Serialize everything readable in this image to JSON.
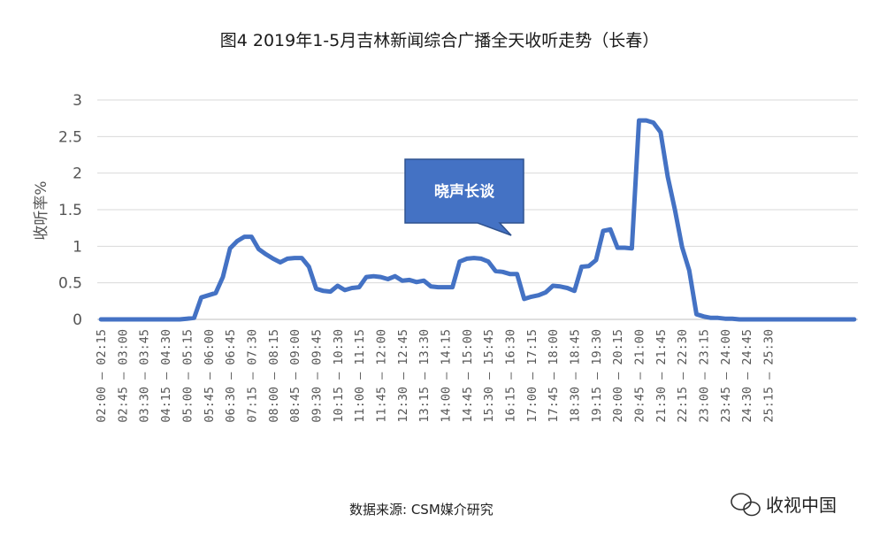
{
  "chart_data": {
    "type": "line",
    "title": "图4  2019年1-5月吉林新闻综合广播全天收听走势（长春）",
    "ylabel": "收听率%",
    "xlabel": "",
    "ylim": [
      0,
      3
    ],
    "yticks": [
      "0",
      "0.5",
      "1",
      "1.5",
      "2",
      "2.5",
      "3"
    ],
    "grid": true,
    "line_color": "#4472c4",
    "x_labels": [
      "02:00 – 02:15",
      "02:45 – 03:00",
      "03:30 – 03:45",
      "04:15 – 04:30",
      "05:00 – 05:15",
      "05:45 – 06:00",
      "06:30 – 06:45",
      "07:15 – 07:30",
      "08:00 – 08:15",
      "08:45 – 09:00",
      "09:30 – 09:45",
      "10:15 – 10:30",
      "11:00 – 11:15",
      "11:45 – 12:00",
      "12:30 – 12:45",
      "13:15 – 13:30",
      "14:00 – 14:15",
      "14:45 – 15:00",
      "15:30 – 15:45",
      "16:15 – 16:30",
      "17:00 – 17:15",
      "17:45 – 18:00",
      "18:30 – 18:45",
      "19:15 – 19:30",
      "20:00 – 20:15",
      "20:45 – 21:00",
      "21:30 – 21:45",
      "22:15 – 22:30",
      "23:00 – 23:15",
      "23:45 – 24:00",
      "24:30 – 24:45",
      "25:15 – 25:30"
    ],
    "values": [
      0,
      0,
      0,
      0,
      0,
      0,
      0,
      0,
      0,
      0,
      0,
      0,
      0.01,
      0.02,
      0.3,
      0.33,
      0.36,
      0.58,
      0.97,
      1.07,
      1.13,
      1.13,
      0.96,
      0.89,
      0.83,
      0.78,
      0.83,
      0.84,
      0.84,
      0.72,
      0.42,
      0.39,
      0.38,
      0.46,
      0.4,
      0.43,
      0.44,
      0.58,
      0.59,
      0.58,
      0.55,
      0.59,
      0.53,
      0.54,
      0.51,
      0.53,
      0.45,
      0.44,
      0.44,
      0.44,
      0.79,
      0.83,
      0.84,
      0.83,
      0.79,
      0.66,
      0.65,
      0.62,
      0.62,
      0.28,
      0.31,
      0.33,
      0.37,
      0.46,
      0.45,
      0.43,
      0.39,
      0.72,
      0.73,
      0.81,
      1.21,
      1.23,
      0.98,
      0.98,
      0.97,
      2.72,
      2.72,
      2.69,
      2.56,
      1.95,
      1.5,
      0.99,
      0.67,
      0.07,
      0.04,
      0.02,
      0.02,
      0.01,
      0.01,
      0,
      0,
      0,
      0,
      0,
      0,
      0,
      0,
      0,
      0,
      0,
      0,
      0,
      0,
      0,
      0,
      0
    ],
    "annotations": [
      {
        "text": "晓声长谈"
      }
    ]
  },
  "footer": {
    "source": "数据来源:  CSM媒介研究",
    "watermark": "收视中国"
  }
}
